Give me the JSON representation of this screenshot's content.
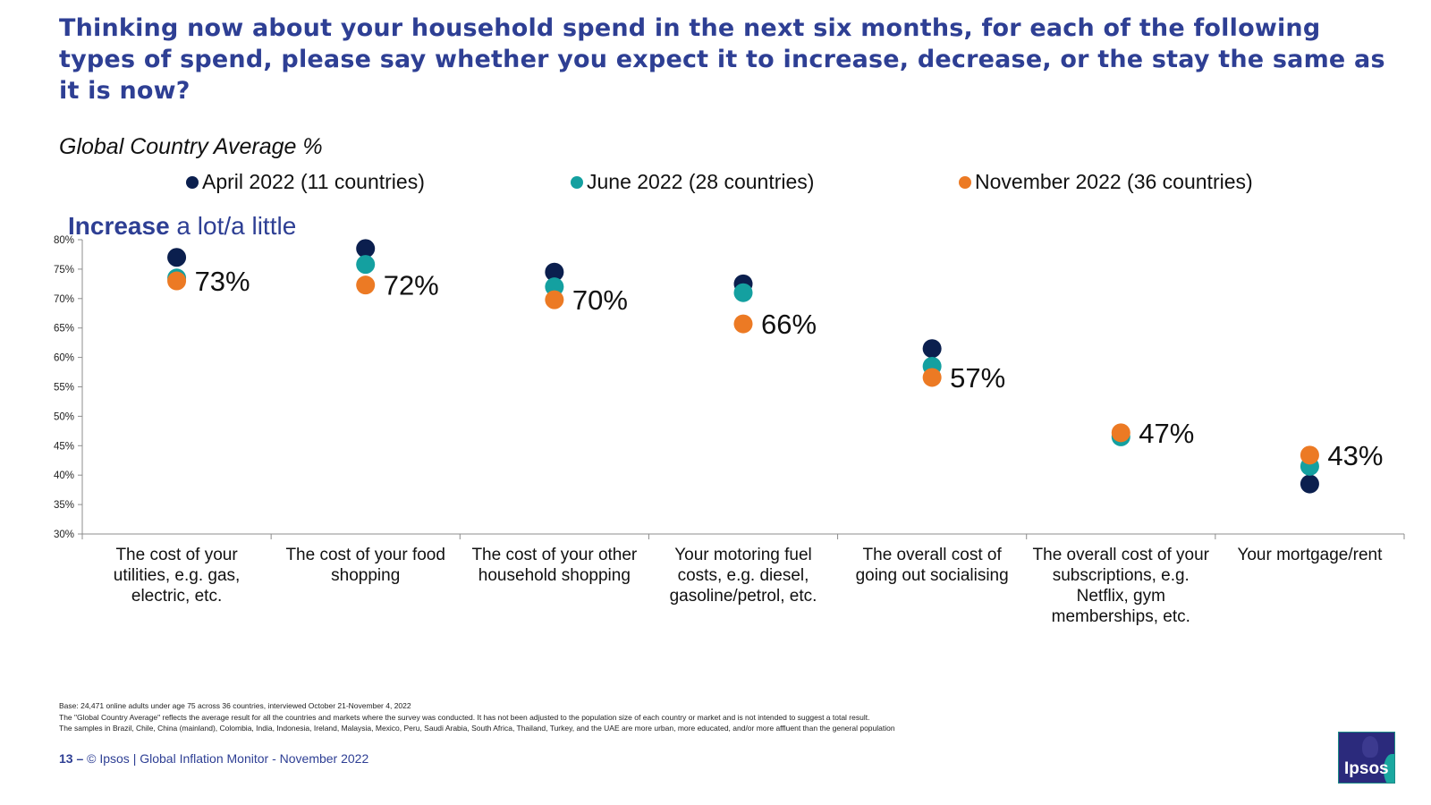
{
  "page": {
    "title": "Thinking now about your household spend in the next six months, for each of the following types of spend, please say whether you expect it to increase, decrease, or the stay the same as it is now?",
    "subtitle": "Global Country Average %",
    "section_label_bold": "Increase",
    "section_label_rest": " a lot/a little",
    "footnotes": [
      "Base: 24,471 online adults under age 75 across 36 countries, interviewed October 21-November 4, 2022",
      "The \"Global Country Average\" reflects the average result for all the countries and markets where the survey was conducted. It has not been adjusted to the population size of each country or market and is not intended to suggest a total result.",
      "The samples in Brazil, Chile, China (mainland), Colombia, India, Indonesia, Ireland, Malaysia, Mexico, Peru, Saudi Arabia, South Africa, Thailand, Turkey, and the UAE are more urban, more educated, and/or more affluent than the general population"
    ],
    "footer_page_number": "13 –",
    "footer_text": "© Ipsos | Global Inflation Monitor - November 2022",
    "logo_text": "Ipsos"
  },
  "chart_data": {
    "type": "scatter",
    "categories": [
      "The cost of your utilities, e.g. gas, electric, etc.",
      "The cost of your food shopping",
      "The cost of your other household shopping",
      "Your motoring fuel costs, e.g. diesel, gasoline/petrol, etc.",
      "The overall cost of going out socialising",
      "The overall cost of your subscriptions, e.g. Netflix, gym memberships, etc.",
      "Your mortgage/rent"
    ],
    "series": [
      {
        "name": "April 2022 (11 countries)",
        "color": "#0b1f4e",
        "values": [
          77,
          78.5,
          74.5,
          72.5,
          61.5,
          null,
          38.5
        ]
      },
      {
        "name": "June 2022 (28 countries)",
        "color": "#14a0a0",
        "values": [
          73.5,
          75.8,
          72,
          71,
          58.5,
          46.5,
          41.5
        ]
      },
      {
        "name": "November 2022 (36 countries)",
        "color": "#ec7a24",
        "values": [
          73,
          72.3,
          69.8,
          65.7,
          56.6,
          47.2,
          43.4
        ]
      }
    ],
    "data_labels": [
      "73%",
      "72%",
      "70%",
      "66%",
      "57%",
      "47%",
      "43%"
    ],
    "y_ticks": [
      "30%",
      "35%",
      "40%",
      "45%",
      "50%",
      "55%",
      "60%",
      "65%",
      "70%",
      "75%",
      "80%"
    ],
    "ylim": [
      30,
      80
    ],
    "legend_position": "top",
    "grid": false
  }
}
